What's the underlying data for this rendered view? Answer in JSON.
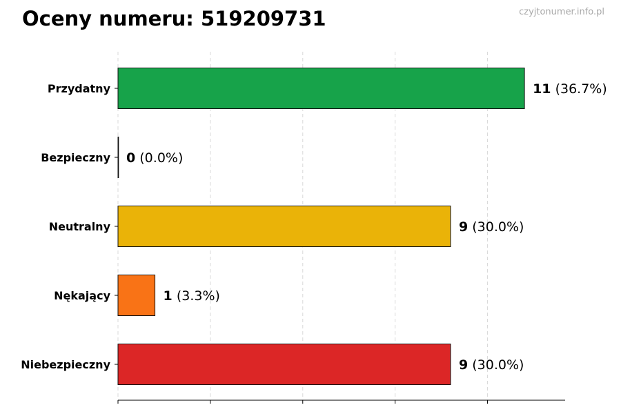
{
  "header": {
    "title": "Oceny numeru: 519209731",
    "source": "czyjtonumer.info.pl"
  },
  "chart_data": {
    "type": "bar",
    "orientation": "horizontal",
    "title": "Oceny numeru: 519209731",
    "categories": [
      "Przydatny",
      "Bezpieczny",
      "Neutralny",
      "Nękający",
      "Niebezpieczny"
    ],
    "values": [
      11,
      0,
      9,
      1,
      9
    ],
    "percent_labels": [
      "(36.7%)",
      "(0.0%)",
      "(30.0%)",
      "(3.3%)",
      "(30.0%)"
    ],
    "colors": [
      "#17a34a",
      "#16a34a",
      "#eab308",
      "#f97316",
      "#dc2626"
    ],
    "xlim": [
      0,
      12.1
    ],
    "grid": true,
    "legend": "none"
  }
}
